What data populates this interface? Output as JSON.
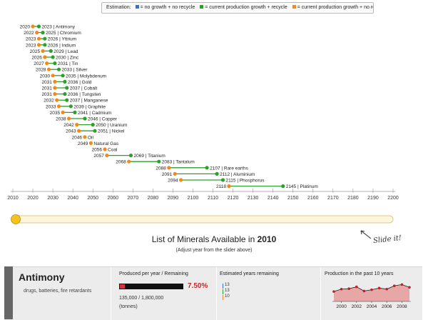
{
  "legend": {
    "title": "Estimation:",
    "items": [
      {
        "label": "= no growth + no recycle",
        "color": "#3a6fc8"
      },
      {
        "label": "= current production growth + recycle",
        "color": "#2ca02c"
      },
      {
        "label": "= current production growth + no recycle",
        "color": "#f28a1a"
      }
    ]
  },
  "chart_data": {
    "type": "dumbbell",
    "axis": {
      "min": 2010,
      "max": 2200,
      "ticks": [
        2010,
        2020,
        2030,
        2040,
        2050,
        2060,
        2070,
        2080,
        2090,
        2100,
        2110,
        2120,
        2130,
        2140,
        2150,
        2160,
        2170,
        2180,
        2190,
        2200
      ]
    },
    "rows": [
      {
        "name": "Antimony",
        "start": 2020,
        "end": 2023
      },
      {
        "name": "Chromium",
        "start": 2022,
        "end": 2025
      },
      {
        "name": "Yttrium",
        "start": 2023,
        "end": 2026
      },
      {
        "name": "Indium",
        "start": 2023,
        "end": 2026
      },
      {
        "name": "Lead",
        "start": 2025,
        "end": 2029
      },
      {
        "name": "Zinc",
        "start": 2026,
        "end": 2030
      },
      {
        "name": "Tin",
        "start": 2027,
        "end": 2031
      },
      {
        "name": "Silver",
        "start": 2028,
        "end": 2033
      },
      {
        "name": "Molybdenum",
        "start": 2030,
        "end": 2035
      },
      {
        "name": "Gold",
        "start": 2031,
        "end": 2036
      },
      {
        "name": "Cobalt",
        "start": 2031,
        "end": 2037
      },
      {
        "name": "Tungsten",
        "start": 2031,
        "end": 2036
      },
      {
        "name": "Manganese",
        "start": 2032,
        "end": 2037
      },
      {
        "name": "Graphite",
        "start": 2033,
        "end": 2039
      },
      {
        "name": "Cadmium",
        "start": 2035,
        "end": 2041
      },
      {
        "name": "Copper",
        "start": 2038,
        "end": 2046
      },
      {
        "name": "Uranium",
        "start": 2042,
        "end": 2050
      },
      {
        "name": "Nickel",
        "start": 2043,
        "end": 2051
      },
      {
        "name": "Oil",
        "start": 2046,
        "end": null
      },
      {
        "name": "Natural Gas",
        "start": 2049,
        "end": null
      },
      {
        "name": "Coal",
        "start": 2056,
        "end": null
      },
      {
        "name": "Titanium",
        "start": 2057,
        "end": 2069
      },
      {
        "name": "Tantalum",
        "start": 2068,
        "end": 2083
      },
      {
        "name": "Rare earths",
        "start": 2088,
        "end": 2107
      },
      {
        "name": "Aluminium",
        "start": 2091,
        "end": 2112
      },
      {
        "name": "Phosphorus",
        "start": 2094,
        "end": 2115
      },
      {
        "name": "Platinum",
        "start": 2118,
        "end": 2145
      }
    ],
    "colors": {
      "start": "#f28a1a",
      "end": "#2ca02c",
      "line": "#2ca02c"
    }
  },
  "slider": {
    "year": 2010
  },
  "hint": {
    "text": "Slide it!"
  },
  "list": {
    "title_prefix": "List of Minerals Available in ",
    "year": "2010",
    "subtitle": "(Adjust year from the slider above)"
  },
  "mineral": {
    "name": "Antimony",
    "uses": "drugs, batteries, fire retardants",
    "production": {
      "title": "Produced per year / Remaining",
      "percent": "7.50%",
      "fraction": 0.075,
      "values": "135,000 / 1,800,000",
      "units": "(tonnes)"
    },
    "years": {
      "title": "Estimated years remaining",
      "values": [
        "13",
        "13",
        "10"
      ],
      "colors": [
        "#3a6fc8",
        "#2ca02c",
        "#f28a1a"
      ]
    },
    "history": {
      "title": "Production in the past 10 years",
      "years": [
        1999,
        2000,
        2001,
        2002,
        2003,
        2004,
        2005,
        2006,
        2007,
        2008,
        2009
      ],
      "values": [
        95,
        118,
        122,
        140,
        100,
        112,
        128,
        118,
        150,
        162,
        135
      ],
      "labels": [
        "2000",
        "2002",
        "2004",
        "2006",
        "2008"
      ]
    }
  }
}
